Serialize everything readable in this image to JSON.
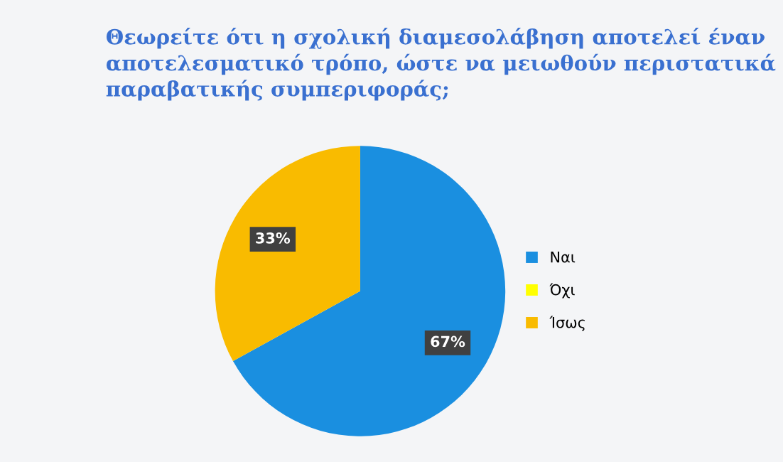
{
  "chart_data": {
    "type": "pie",
    "title": "Θεωρείτε ότι η σχολική διαμεσολάβηση αποτελεί έναν αποτελεσματικό τρόπο, ώστε να μειωθούν περιστατικά παραβατικής συμπεριφοράς;",
    "categories": [
      "Ναι",
      "Όχι",
      "Ίσως"
    ],
    "values": [
      67,
      0,
      33
    ],
    "colors": [
      "#1a8fe0",
      "#ffff00",
      "#f9bb00"
    ],
    "value_labels": [
      "67%",
      null,
      "33%"
    ],
    "legend": "right"
  }
}
